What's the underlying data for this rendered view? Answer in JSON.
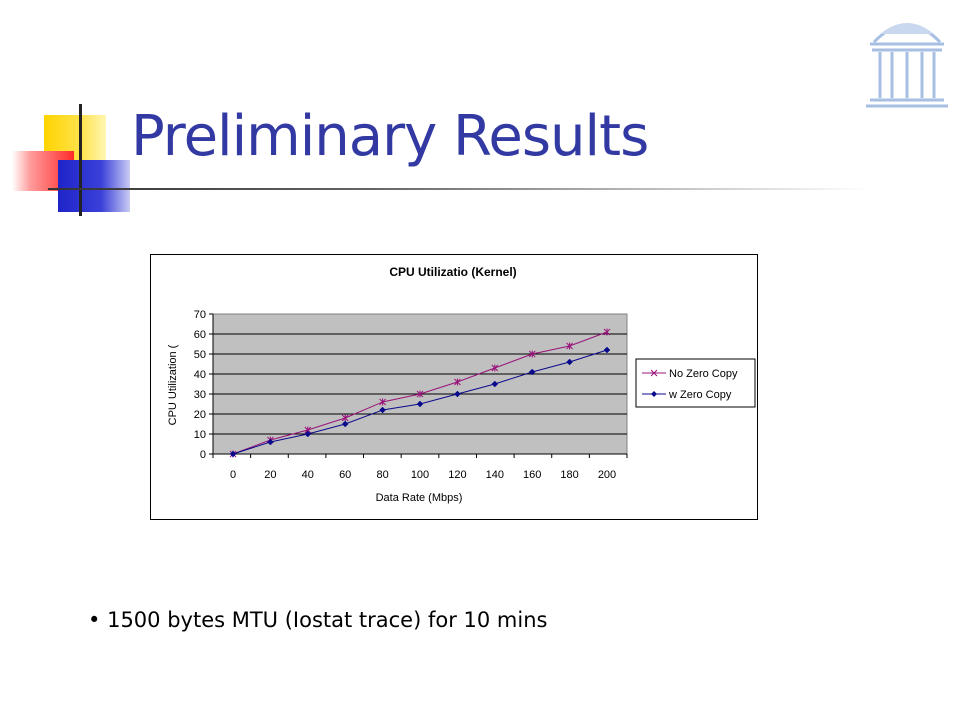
{
  "slide": {
    "title": "Preliminary Results",
    "bullet_text": "1500 bytes MTU (Iostat trace) for 10 mins",
    "bullet_symbol": "•"
  },
  "colors": {
    "title": "#3339a3",
    "series_no_zero_copy": "#99127a",
    "series_w_zero_copy": "#0a0a8c",
    "plot_background": "#c0c0c0",
    "logo": "#a7bfe3"
  },
  "chart_data": {
    "type": "line",
    "title": "CPU Utilizatio (Kernel)",
    "xlabel": "Data Rate (Mbps)",
    "ylabel": "CPU Utilization (",
    "x": [
      0,
      20,
      40,
      60,
      80,
      100,
      120,
      140,
      160,
      180,
      200
    ],
    "x_tick_labels": [
      "0",
      "20",
      "40",
      "60",
      "80",
      "100",
      "120",
      "140",
      "160",
      "180",
      "200"
    ],
    "y_tick_labels": [
      "0",
      "10",
      "20",
      "30",
      "40",
      "50",
      "60",
      "70"
    ],
    "ylim": [
      0,
      70
    ],
    "grid": "horizontal",
    "legend": "right",
    "series": [
      {
        "name": "No Zero Copy",
        "marker": "x",
        "values": [
          0,
          7,
          12,
          18,
          26,
          30,
          36,
          43,
          50,
          54,
          61
        ]
      },
      {
        "name": "w Zero Copy",
        "marker": "diamond",
        "values": [
          0,
          6,
          10,
          15,
          22,
          25,
          30,
          35,
          41,
          46,
          52
        ]
      }
    ]
  }
}
